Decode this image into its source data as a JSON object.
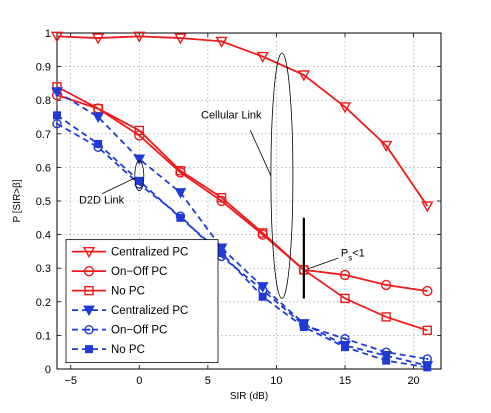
{
  "chart_data": {
    "type": "line",
    "xlabel": "SIR (dB)",
    "ylabel": "P [SIR>β]",
    "xlim": [
      -6,
      22
    ],
    "ylim": [
      0,
      1
    ],
    "xticks": [
      -5,
      0,
      5,
      10,
      15,
      20
    ],
    "yticks": [
      0,
      0.1,
      0.2,
      0.3,
      0.4,
      0.5,
      0.6,
      0.7,
      0.8,
      0.9,
      1
    ],
    "grid": true,
    "legend_position": "bottom-left",
    "colors": {
      "red": "#ee1c1c",
      "blue": "#1f3bd6"
    },
    "series": [
      {
        "name": "Centralized PC",
        "color": "#ee1c1c",
        "line": "solid",
        "marker": "triangle-down-open",
        "x": [
          -6,
          -3,
          0,
          3,
          6,
          9,
          12,
          15,
          18,
          21
        ],
        "y": [
          0.99,
          0.985,
          0.99,
          0.985,
          0.975,
          0.93,
          0.875,
          0.78,
          0.665,
          0.485
        ]
      },
      {
        "name": "On−Off PC",
        "color": "#ee1c1c",
        "line": "solid",
        "marker": "circle-open",
        "x": [
          -6,
          -3,
          0,
          3,
          6,
          9,
          12,
          15,
          18,
          21
        ],
        "y": [
          0.815,
          0.775,
          0.695,
          0.585,
          0.5,
          0.4,
          0.295,
          0.28,
          0.25,
          0.232
        ]
      },
      {
        "name": "No PC",
        "color": "#ee1c1c",
        "line": "solid",
        "marker": "square-open",
        "x": [
          -6,
          -3,
          0,
          3,
          6,
          9,
          12,
          15,
          18,
          21
        ],
        "y": [
          0.84,
          0.775,
          0.71,
          0.59,
          0.51,
          0.405,
          0.295,
          0.21,
          0.155,
          0.115
        ]
      },
      {
        "name": "Centralized PC",
        "color": "#1f3bd6",
        "line": "dashed",
        "marker": "triangle-down-filled",
        "x": [
          -6,
          -3,
          0,
          3,
          6,
          9,
          12,
          15,
          18,
          21
        ],
        "y": [
          0.825,
          0.75,
          0.625,
          0.525,
          0.36,
          0.245,
          0.135,
          0.07,
          0.04,
          0.01
        ]
      },
      {
        "name": "On−Off PC",
        "color": "#1f3bd6",
        "line": "dashed",
        "marker": "circle-dotted",
        "x": [
          -6,
          -3,
          0,
          3,
          6,
          9,
          12,
          15,
          18,
          21
        ],
        "y": [
          0.73,
          0.66,
          0.55,
          0.455,
          0.335,
          0.235,
          0.13,
          0.09,
          0.05,
          0.03
        ]
      },
      {
        "name": "No PC",
        "color": "#1f3bd6",
        "line": "dashed",
        "marker": "square-filled",
        "x": [
          -6,
          -3,
          0,
          3,
          6,
          9,
          12,
          15,
          18,
          21
        ],
        "y": [
          0.755,
          0.67,
          0.56,
          0.45,
          0.345,
          0.215,
          0.125,
          0.065,
          0.025,
          0.005
        ]
      }
    ],
    "annotations": [
      {
        "text": "Cellular Link",
        "shape": "ellipse"
      },
      {
        "text": "D2D Link",
        "shape": "ellipse"
      },
      {
        "text": "P",
        "subscript": "s",
        "suffix": "<1",
        "marker": "vertical-bar-at-x-12"
      }
    ]
  }
}
